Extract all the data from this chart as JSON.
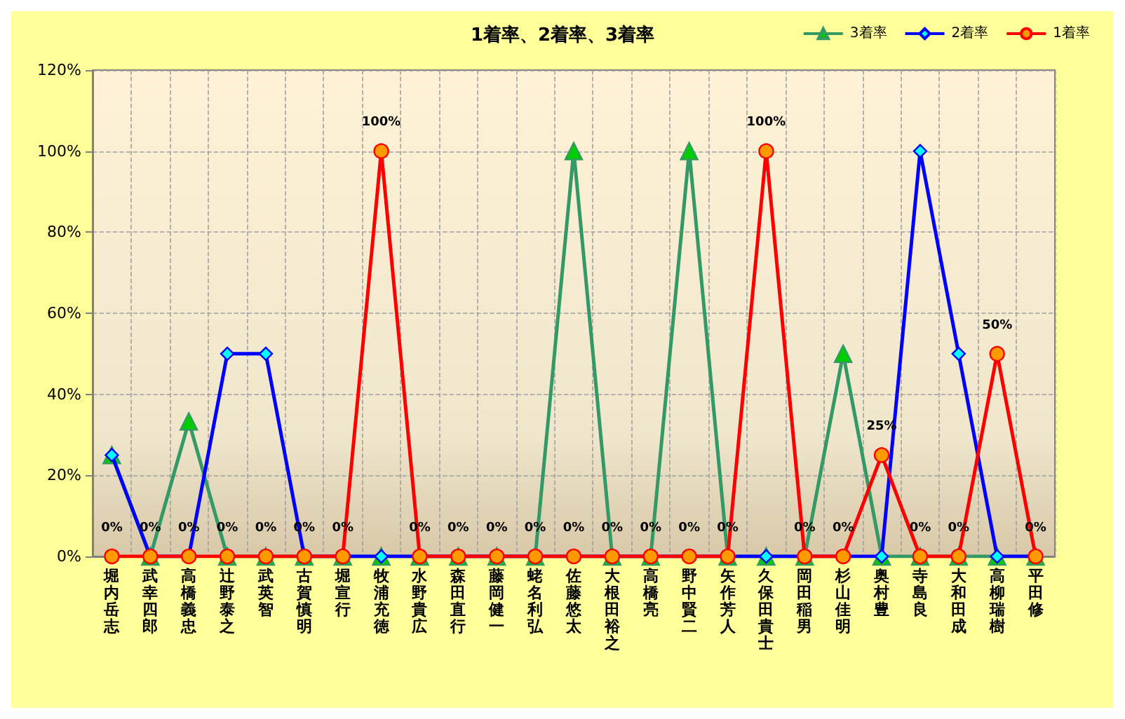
{
  "chart_data": {
    "type": "line",
    "title": "1着率、2着率、3着率",
    "categories": [
      "堀内岳志",
      "武幸四郎",
      "高橋義忠",
      "辻野泰之",
      "武英智",
      "古賀慎明",
      "堀宣行",
      "牧浦充徳",
      "水野貴広",
      "森田直行",
      "藤岡健一",
      "蛯名利弘",
      "佐藤悠太",
      "大根田裕之",
      "高橋亮",
      "野中賢二",
      "矢作芳人",
      "久保田貴士",
      "岡田稲男",
      "杉山佳明",
      "奥村豊",
      "寺島良",
      "大和田成",
      "高柳瑞樹",
      "平田修"
    ],
    "series": [
      {
        "name": "3着率",
        "color": "#339966",
        "marker": "triangle",
        "values": [
          25,
          0,
          33.3,
          0,
          0,
          0,
          0,
          0,
          0,
          0,
          0,
          0,
          100,
          0,
          0,
          100,
          0,
          0,
          0,
          50,
          0,
          0,
          0,
          0,
          0
        ]
      },
      {
        "name": "2着率",
        "color": "#0000ff",
        "marker": "diamond",
        "values": [
          25,
          0,
          0,
          50,
          50,
          0,
          0,
          0,
          0,
          0,
          0,
          0,
          0,
          0,
          0,
          0,
          0,
          0,
          0,
          0,
          0,
          100,
          50,
          0,
          0
        ]
      },
      {
        "name": "1着率",
        "color": "#ff0000",
        "marker": "circle",
        "values": [
          0,
          0,
          0,
          0,
          0,
          0,
          0,
          100,
          0,
          0,
          0,
          0,
          0,
          0,
          0,
          0,
          0,
          100,
          0,
          0,
          25,
          0,
          0,
          50,
          0
        ],
        "value_labels": [
          "0%",
          "0%",
          "0%",
          "0%",
          "0%",
          "0%",
          "0%",
          "100%",
          "0%",
          "0%",
          "0%",
          "0%",
          "0%",
          "0%",
          "0%",
          "0%",
          "0%",
          "100%",
          "0%",
          "0%",
          "25%",
          "0%",
          "0%",
          "50%",
          "0%"
        ]
      }
    ],
    "ylim": [
      0,
      120
    ],
    "yticks": [
      {
        "value": 0,
        "label": "0%"
      },
      {
        "value": 20,
        "label": "20%"
      },
      {
        "value": 40,
        "label": "40%"
      },
      {
        "value": 60,
        "label": "60%"
      },
      {
        "value": 80,
        "label": "80%"
      },
      {
        "value": 100,
        "label": "100%"
      },
      {
        "value": 120,
        "label": "120%"
      }
    ],
    "grid": true,
    "legend": "top right"
  }
}
